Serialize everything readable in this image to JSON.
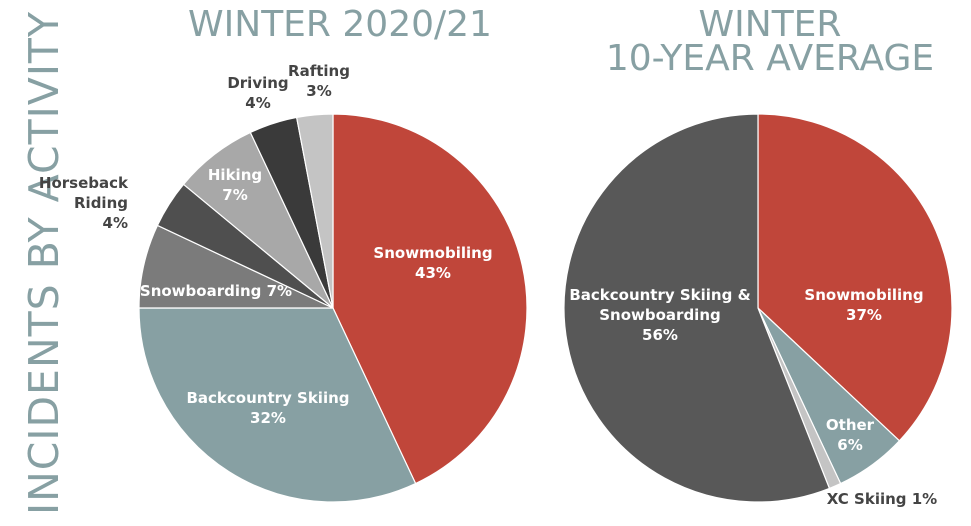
{
  "side_title": "INCIDENTS BY ACTIVITY",
  "chart_data": [
    {
      "type": "pie",
      "title": "WINTER 2020/21",
      "slices": [
        {
          "label": "Snowmobiling",
          "value": 43,
          "display": "43%",
          "color": "#c0463a",
          "label_color": "#ffffff"
        },
        {
          "label": "Backcountry Skiing",
          "value": 32,
          "display": "32%",
          "color": "#87a0a3",
          "label_color": "#ffffff"
        },
        {
          "label": "Snowboarding",
          "value": 7,
          "display": "7%",
          "color": "#7b7b7b",
          "label_color": "#ffffff"
        },
        {
          "label": "Horseback Riding",
          "value": 4,
          "display": "4%",
          "color": "#4f4f4f",
          "label_color": "#444444"
        },
        {
          "label": "Hiking",
          "value": 7,
          "display": "7%",
          "color": "#a8a8a8",
          "label_color": "#ffffff"
        },
        {
          "label": "Driving",
          "value": 4,
          "display": "4%",
          "color": "#3a3a3a",
          "label_color": "#444444"
        },
        {
          "label": "Rafting",
          "value": 3,
          "display": "3%",
          "color": "#c4c4c4",
          "label_color": "#444444"
        }
      ]
    },
    {
      "type": "pie",
      "title": "WINTER 10-YEAR AVERAGE",
      "slices": [
        {
          "label": "Snowmobiling",
          "value": 37,
          "display": "37%",
          "color": "#c0463a",
          "label_color": "#ffffff"
        },
        {
          "label": "Other",
          "value": 6,
          "display": "6%",
          "color": "#87a0a3",
          "label_color": "#ffffff"
        },
        {
          "label": "XC Skiing",
          "value": 1,
          "display": "1%",
          "color": "#c4c4c4",
          "label_color": "#444444"
        },
        {
          "label": "Backcountry Skiing & Snowboarding",
          "value": 56,
          "display": "56%",
          "color": "#585858",
          "label_color": "#ffffff"
        }
      ]
    }
  ]
}
